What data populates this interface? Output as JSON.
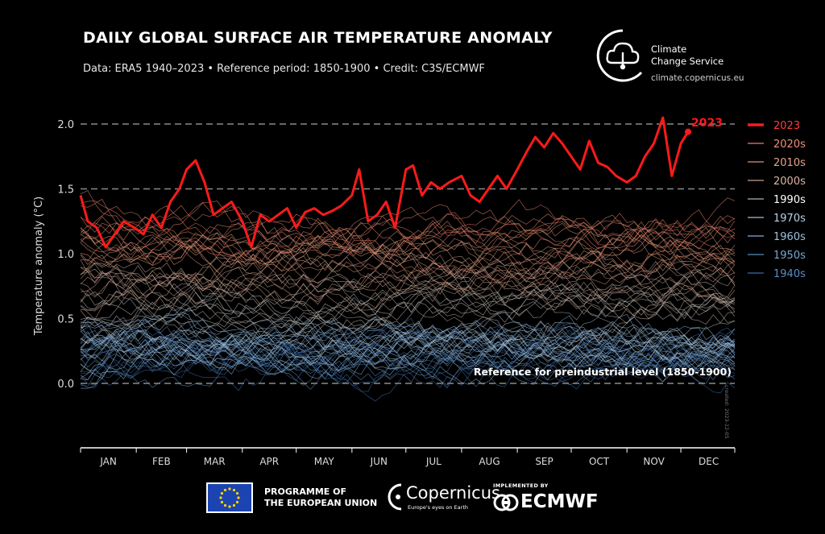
{
  "header": {
    "title": "DAILY GLOBAL SURFACE AIR TEMPERATURE ANOMALY",
    "subtitle": "Data: ERA5 1940–2023 • Reference period: 1850-1900 • Credit: C3S/ECMWF"
  },
  "brand": {
    "line1": "Climate",
    "line2": "Change Service",
    "url": "climate.copernicus.eu"
  },
  "footer": {
    "eu_line1": "PROGRAMME OF",
    "eu_line2": "THE EUROPEAN UNION",
    "copernicus": "Copernicus",
    "copernicus_tagline": "Europe's eyes on Earth",
    "implemented_by": "IMPLEMENTED BY",
    "ecmwf": "ECMWF",
    "created": "created: 2023-12-05"
  },
  "colors": {
    "highlight": "#ff1a1a",
    "gridline": "#8a8a8a",
    "2020s": "#e8826a",
    "2010s": "#d99478",
    "2000s": "#c9a08e",
    "1990s": "#b8b0aa",
    "1970s": "#a5c0d6",
    "1960s": "#86aed2",
    "1950s": "#5a8cc0",
    "1940s": "#3a6aa8"
  },
  "chart_data": {
    "type": "line",
    "title": "DAILY GLOBAL SURFACE AIR TEMPERATURE ANOMALY",
    "xlabel": "",
    "ylabel": "Temperature anomaly (°C)",
    "ylim": [
      -0.5,
      2.05
    ],
    "yticks": [
      0.0,
      0.5,
      1.0,
      1.5,
      2.0
    ],
    "ytick_labels": [
      "0.0",
      "0.5",
      "1.0",
      "1.5",
      "2.0"
    ],
    "months": [
      "JAN",
      "FEB",
      "MAR",
      "APR",
      "MAY",
      "JUN",
      "JUL",
      "AUG",
      "SEP",
      "OCT",
      "NOV",
      "DEC"
    ],
    "dashed_reference_lines": [
      0.0,
      1.5,
      2.0
    ],
    "annotations": {
      "reference": "Reference for preindustrial level (1850-1900)",
      "end_label": "2023"
    },
    "legend": {
      "placement": "right",
      "entries": [
        "2023",
        "2020s",
        "2010s",
        "2000s",
        "1990s",
        "1970s",
        "1960s",
        "1950s",
        "1940s"
      ]
    },
    "decade_bands": [
      {
        "name": "1940s",
        "mean": 0.2
      },
      {
        "name": "1950s",
        "mean": 0.22
      },
      {
        "name": "1960s",
        "mean": 0.25
      },
      {
        "name": "1970s",
        "mean": 0.32
      },
      {
        "name": "1990s",
        "mean": 0.62
      },
      {
        "name": "2000s",
        "mean": 0.8
      },
      {
        "name": "2010s",
        "mean": 0.98
      },
      {
        "name": "2020s",
        "mean": 1.18
      }
    ],
    "series": [
      {
        "name": "2023",
        "x": [
          1,
          5,
          10,
          15,
          20,
          25,
          31,
          36,
          41,
          46,
          51,
          56,
          60,
          65,
          70,
          75,
          80,
          85,
          91,
          96,
          101,
          106,
          111,
          116,
          121,
          126,
          131,
          136,
          141,
          146,
          152,
          156,
          161,
          166,
          171,
          176,
          182,
          186,
          191,
          196,
          201,
          206,
          213,
          218,
          223,
          228,
          233,
          238,
          244,
          249,
          254,
          259,
          264,
          269,
          274,
          279,
          284,
          289,
          294,
          299,
          305,
          310,
          315,
          320,
          325,
          330,
          335,
          339
        ],
        "values": [
          1.45,
          1.25,
          1.2,
          1.05,
          1.15,
          1.25,
          1.2,
          1.15,
          1.3,
          1.2,
          1.4,
          1.5,
          1.65,
          1.72,
          1.55,
          1.3,
          1.35,
          1.4,
          1.25,
          1.05,
          1.3,
          1.25,
          1.3,
          1.35,
          1.2,
          1.32,
          1.35,
          1.3,
          1.33,
          1.37,
          1.45,
          1.65,
          1.25,
          1.3,
          1.4,
          1.2,
          1.65,
          1.68,
          1.45,
          1.55,
          1.5,
          1.55,
          1.6,
          1.45,
          1.4,
          1.5,
          1.6,
          1.5,
          1.65,
          1.78,
          1.9,
          1.82,
          1.93,
          1.85,
          1.75,
          1.65,
          1.87,
          1.7,
          1.67,
          1.6,
          1.55,
          1.6,
          1.75,
          1.85,
          2.05,
          1.6,
          1.85,
          1.94
        ]
      }
    ]
  }
}
